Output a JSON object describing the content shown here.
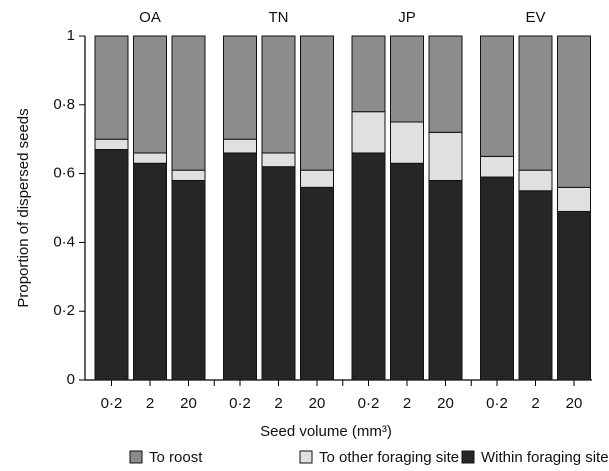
{
  "chart_data": {
    "type": "stacked_bar",
    "y_label": "Proportion of dispersed seeds",
    "x_label": "Seed volume (mm³)",
    "groups": [
      "OA",
      "TN",
      "JP",
      "EV"
    ],
    "categories": [
      "0·2",
      "2",
      "20",
      "0·2",
      "2",
      "20",
      "0·2",
      "2",
      "20",
      "0·2",
      "2",
      "20"
    ],
    "series": [
      {
        "name": "Within foraging site",
        "color": "#262626",
        "values": [
          0.67,
          0.63,
          0.58,
          0.66,
          0.62,
          0.56,
          0.66,
          0.63,
          0.58,
          0.59,
          0.55,
          0.49
        ]
      },
      {
        "name": "To other foraging site",
        "color": "#e0e0e0",
        "values": [
          0.03,
          0.03,
          0.03,
          0.04,
          0.04,
          0.05,
          0.12,
          0.12,
          0.14,
          0.06,
          0.06,
          0.07
        ]
      },
      {
        "name": "To roost",
        "color": "#8c8c8c",
        "values": [
          0.3,
          0.34,
          0.39,
          0.3,
          0.34,
          0.39,
          0.22,
          0.25,
          0.28,
          0.35,
          0.39,
          0.44
        ]
      }
    ],
    "legend_order": [
      2,
      1,
      0
    ],
    "ylim": [
      0,
      1
    ],
    "yticks": [
      0,
      {
        "value": 0.2,
        "label": "0·2"
      },
      {
        "value": 0.4,
        "label": "0·4"
      },
      {
        "value": 0.6,
        "label": "0·6"
      },
      {
        "value": 0.8,
        "label": "0·8"
      },
      1
    ]
  }
}
